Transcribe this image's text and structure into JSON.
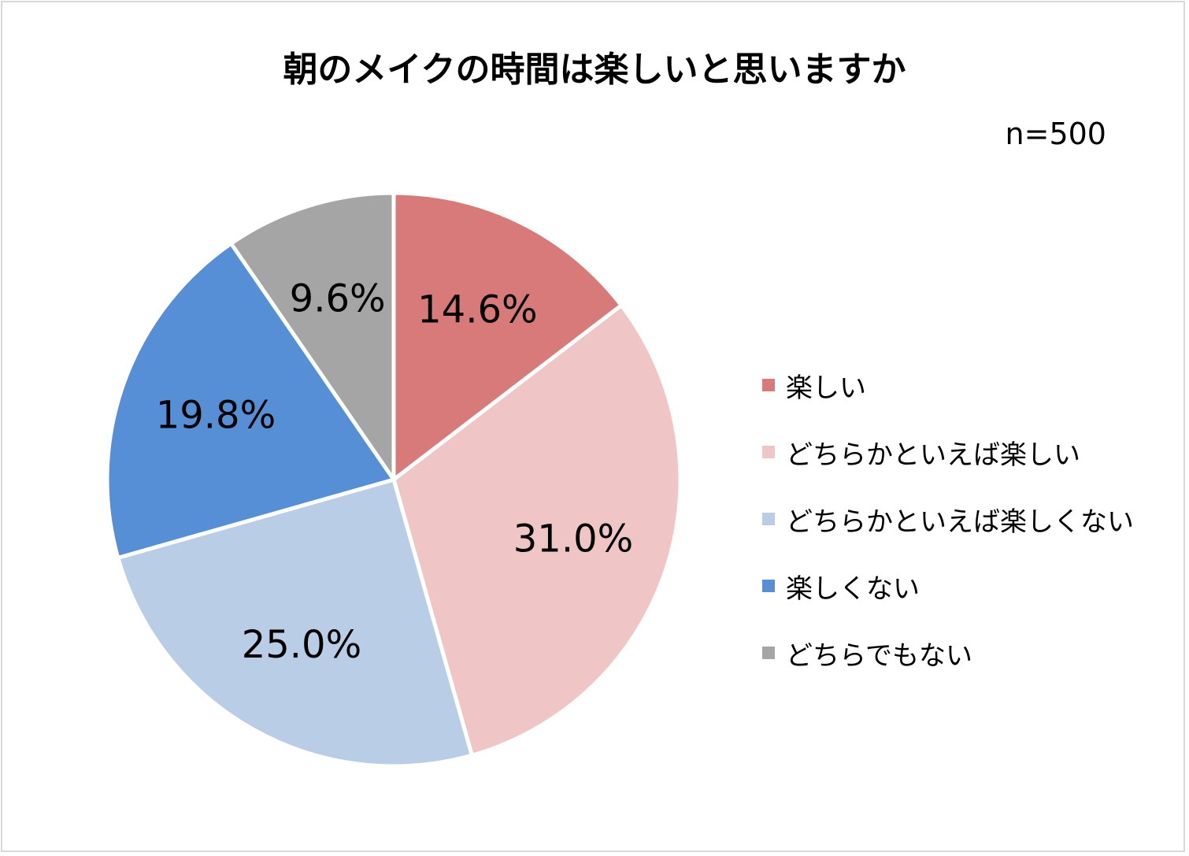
{
  "chart_data": {
    "type": "pie",
    "title": "朝のメイクの時間は楽しいと思いますか",
    "annotation": "n=500",
    "categories": [
      "楽しい",
      "どちらかといえば楽しい",
      "どちらかといえば楽しくない",
      "楽しくない",
      "どちらでもない"
    ],
    "values": [
      14.6,
      31.0,
      25.0,
      19.8,
      9.6
    ],
    "value_labels": [
      "14.6%",
      "31.0%",
      "25.0%",
      "19.8%",
      "9.6%"
    ],
    "colors": [
      "#d97a7a",
      "#efc5c5",
      "#b9cde6",
      "#568fd6",
      "#a5a5a5"
    ],
    "legend_position": "right",
    "start_angle": "12 o'clock",
    "direction": "clockwise"
  }
}
